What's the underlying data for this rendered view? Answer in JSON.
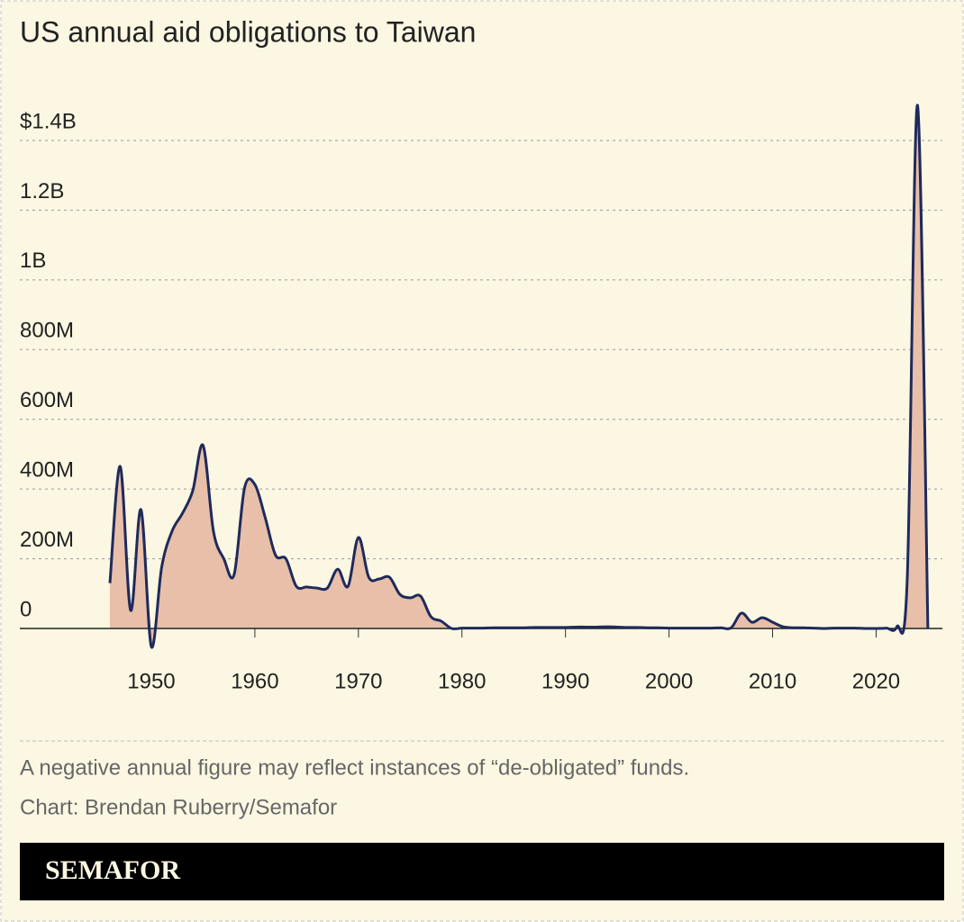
{
  "chart_data": {
    "type": "area",
    "title": "US annual aid obligations to Taiwan",
    "x": [
      1946,
      1947,
      1948,
      1949,
      1950,
      1951,
      1952,
      1953,
      1954,
      1955,
      1956,
      1957,
      1958,
      1959,
      1960,
      1961,
      1962,
      1963,
      1964,
      1965,
      1966,
      1967,
      1968,
      1969,
      1970,
      1971,
      1972,
      1973,
      1974,
      1975,
      1976,
      1977,
      1978,
      1979,
      1980,
      1981,
      1982,
      1983,
      1984,
      1985,
      1986,
      1987,
      1988,
      1989,
      1990,
      1991,
      1992,
      1993,
      1994,
      1995,
      1996,
      1997,
      1998,
      1999,
      2000,
      2001,
      2002,
      2003,
      2004,
      2005,
      2006,
      2007,
      2008,
      2009,
      2010,
      2011,
      2012,
      2013,
      2014,
      2015,
      2016,
      2017,
      2018,
      2019,
      2020,
      2021,
      2022,
      2023,
      2024,
      2025
    ],
    "values": [
      130000000,
      465000000,
      52000000,
      341000000,
      -52000000,
      176000000,
      279000000,
      330000000,
      395000000,
      525000000,
      279000000,
      200000000,
      155000000,
      403000000,
      413000000,
      318000000,
      210000000,
      200000000,
      121000000,
      119000000,
      116000000,
      116000000,
      170000000,
      121000000,
      261000000,
      147000000,
      142000000,
      147000000,
      98000000,
      88000000,
      93000000,
      34000000,
      21000000,
      0,
      1000000,
      1000000,
      1000000,
      2000000,
      2000000,
      2000000,
      2000000,
      3000000,
      3000000,
      3000000,
      3000000,
      4000000,
      4000000,
      4000000,
      5000000,
      4000000,
      3000000,
      3000000,
      2000000,
      2000000,
      1000000,
      1000000,
      1000000,
      1000000,
      1000000,
      2000000,
      2000000,
      44000000,
      18000000,
      31000000,
      18000000,
      5000000,
      2000000,
      2000000,
      1000000,
      0,
      1000000,
      1000000,
      1000000,
      0,
      0,
      1000000,
      5000000,
      137000000,
      1501000000,
      0
    ],
    "color": "#1f2a5c",
    "fill": "#e8bfa9",
    "xlim": [
      1937.3,
      2026.4
    ],
    "xticks": [
      1950,
      1960,
      1970,
      1980,
      1990,
      2000,
      2010,
      2020
    ],
    "ylim": [
      -100000000,
      1500000000
    ],
    "yticks": [
      0,
      {
        "value": 200000000,
        "label": "200M"
      },
      {
        "value": 400000000,
        "label": "400M"
      },
      {
        "value": 600000000,
        "label": "600M"
      },
      {
        "value": 800000000,
        "label": "800M"
      },
      {
        "value": 1000000000,
        "label": "1B"
      },
      {
        "value": 1200000000,
        "label": "1.2B"
      },
      {
        "value": 1400000000,
        "label": "$1.4B"
      }
    ],
    "grid": true,
    "note": "A negative annual figure may reflect instances of “de-obligated” funds.",
    "credit": "Chart: Brendan Ruberry/Semafor",
    "logo": "SEMAFOR"
  }
}
